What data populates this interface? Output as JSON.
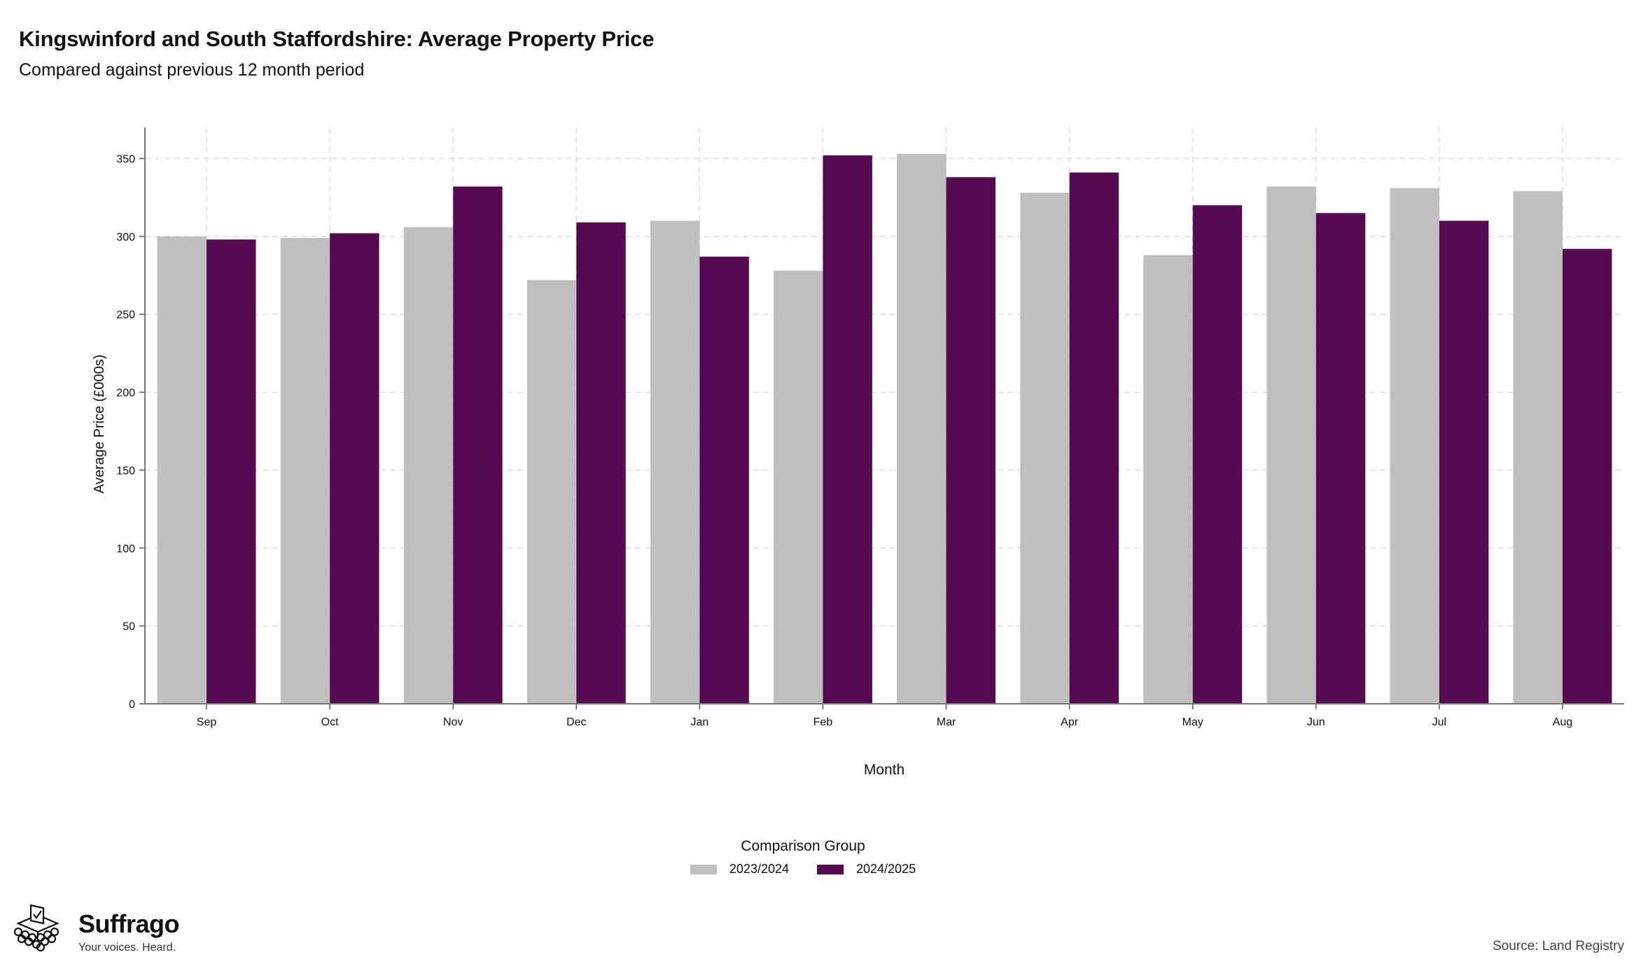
{
  "header": {
    "title": "Kingswinford and South Staffordshire: Average Property Price",
    "subtitle": "Compared against previous 12 month period"
  },
  "chart_data": {
    "type": "bar",
    "title": "Kingswinford and South Staffordshire: Average Property Price",
    "subtitle": "Compared against previous 12 month period",
    "xlabel": "Month",
    "ylabel": "Average Price (£000s)",
    "ylim": [
      0,
      370
    ],
    "yticks": [
      0,
      50,
      100,
      150,
      200,
      250,
      300,
      350
    ],
    "grid": true,
    "legend_position": "bottom",
    "legend_title": "Comparison Group",
    "categories": [
      "Sep",
      "Oct",
      "Nov",
      "Dec",
      "Jan",
      "Feb",
      "Mar",
      "Apr",
      "May",
      "Jun",
      "Jul",
      "Aug"
    ],
    "series": [
      {
        "name": "2023/2024",
        "color": "#bfbfbf",
        "values": [
          300,
          299,
          306,
          272,
          310,
          278,
          353,
          328,
          288,
          332,
          331,
          329
        ]
      },
      {
        "name": "2024/2025",
        "color": "#550a52",
        "values": [
          298,
          302,
          332,
          309,
          287,
          352,
          338,
          341,
          320,
          315,
          310,
          292
        ]
      }
    ]
  },
  "branding": {
    "name": "Suffrago",
    "tagline": "Your voices. Heard.",
    "logo_icon": "ballot-box-icon"
  },
  "footer": {
    "source": "Source: Land Registry"
  }
}
